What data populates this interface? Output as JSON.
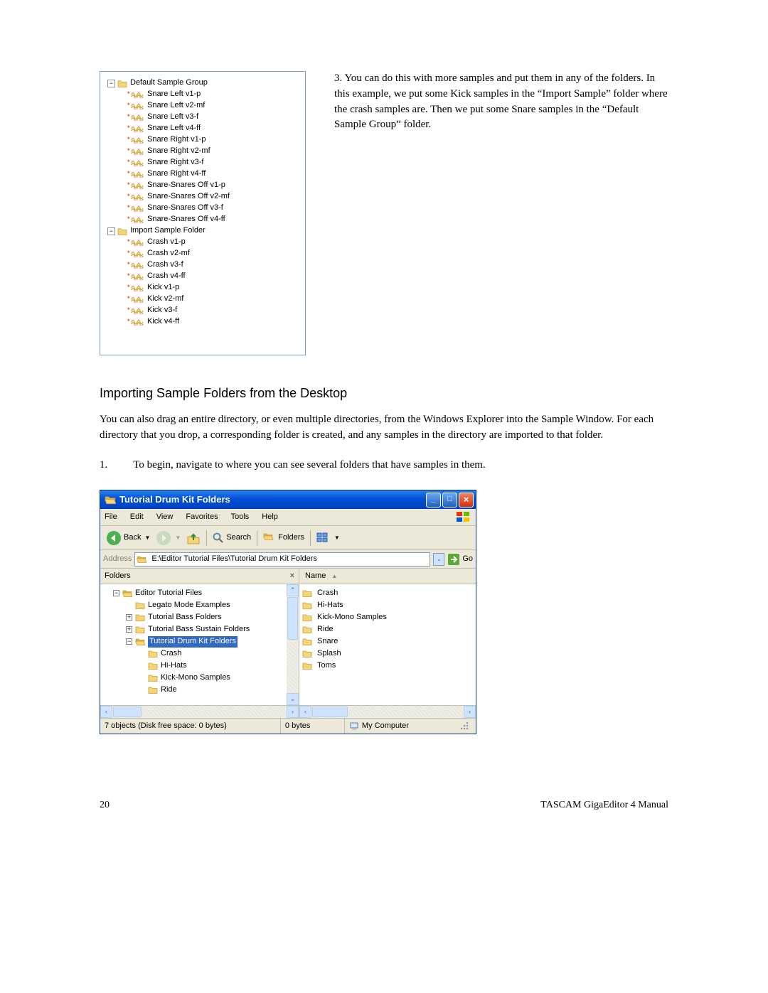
{
  "topTree": {
    "folders": [
      {
        "label": "Default Sample Group",
        "items": [
          "Snare Left v1-p",
          "Snare Left v2-mf",
          "Snare Left v3-f",
          "Snare Left v4-ff",
          "Snare Right v1-p",
          "Snare Right v2-mf",
          "Snare Right v3-f",
          "Snare Right v4-ff",
          "Snare-Snares Off v1-p",
          "Snare-Snares Off v2-mf",
          "Snare-Snares Off v3-f",
          "Snare-Snares Off v4-ff"
        ]
      },
      {
        "label": "Import Sample Folder",
        "items": [
          "Crash v1-p",
          "Crash v2-mf",
          "Crash v3-f",
          "Crash v4-ff",
          "Kick v1-p",
          "Kick v2-mf",
          "Kick v3-f",
          "Kick v4-ff"
        ]
      }
    ]
  },
  "paraRight": "3. You can do this with more samples and put them in any of the folders.  In this example, we put some Kick samples in the “Import Sample” folder where the crash samples are. Then we put some Snare samples in the “Default Sample Group” folder.",
  "heading": "Importing Sample Folders from the Desktop",
  "bodyText": "You can also drag an entire directory, or even multiple directories, from the Windows Explorer into the Sample Window.  For each directory that you drop, a corresponding folder is created, and any samples in the directory are imported to that folder.",
  "numList": {
    "num": "1.",
    "text": "To begin, navigate to where you can see several folders that have samples in them."
  },
  "explorer": {
    "title": "Tutorial Drum Kit Folders",
    "menu": [
      "File",
      "Edit",
      "View",
      "Favorites",
      "Tools",
      "Help"
    ],
    "back": "Back",
    "search": "Search",
    "folders": "Folders",
    "addressLabel": "Address",
    "addressPath": "E:\\Editor Tutorial Files\\Tutorial Drum Kit Folders",
    "go": "Go",
    "foldersPaneTitle": "Folders",
    "columnHeader": "Name",
    "tree": [
      {
        "indent": 0,
        "expand": "-",
        "type": "folder-open",
        "label": "Editor Tutorial Files"
      },
      {
        "indent": 1,
        "expand": "",
        "type": "folder",
        "label": "Legato Mode Examples"
      },
      {
        "indent": 1,
        "expand": "+",
        "type": "folder",
        "label": "Tutorial Bass Folders"
      },
      {
        "indent": 1,
        "expand": "+",
        "type": "folder",
        "label": "Tutorial Bass Sustain Folders"
      },
      {
        "indent": 1,
        "expand": "-",
        "type": "folder-open",
        "label": "Tutorial Drum Kit Folders",
        "selected": true
      },
      {
        "indent": 2,
        "expand": "",
        "type": "folder",
        "label": "Crash"
      },
      {
        "indent": 2,
        "expand": "",
        "type": "folder",
        "label": "Hi-Hats"
      },
      {
        "indent": 2,
        "expand": "",
        "type": "folder",
        "label": "Kick-Mono Samples"
      },
      {
        "indent": 2,
        "expand": "",
        "type": "folder",
        "label": "Ride"
      }
    ],
    "list": [
      "Crash",
      "Hi-Hats",
      "Kick-Mono Samples",
      "Ride",
      "Snare",
      "Splash",
      "Toms"
    ],
    "statusLeft": "7 objects (Disk free space: 0 bytes)",
    "statusMid": "0 bytes",
    "statusRight": "My Computer",
    "colors": {
      "titlebar_grad_top": "#2a80e8",
      "titlebar_grad_mid": "#0050d8",
      "xp_selection": "#316ac5",
      "panel_bg": "#ece9d8",
      "border": "#7f9db9",
      "folder_fill": "#f7d37a",
      "folder_stroke": "#c8a030",
      "open_folder_fill": "#d9b35a"
    }
  },
  "footer": {
    "pageNum": "20",
    "manual": "TASCAM GigaEditor 4 Manual"
  }
}
